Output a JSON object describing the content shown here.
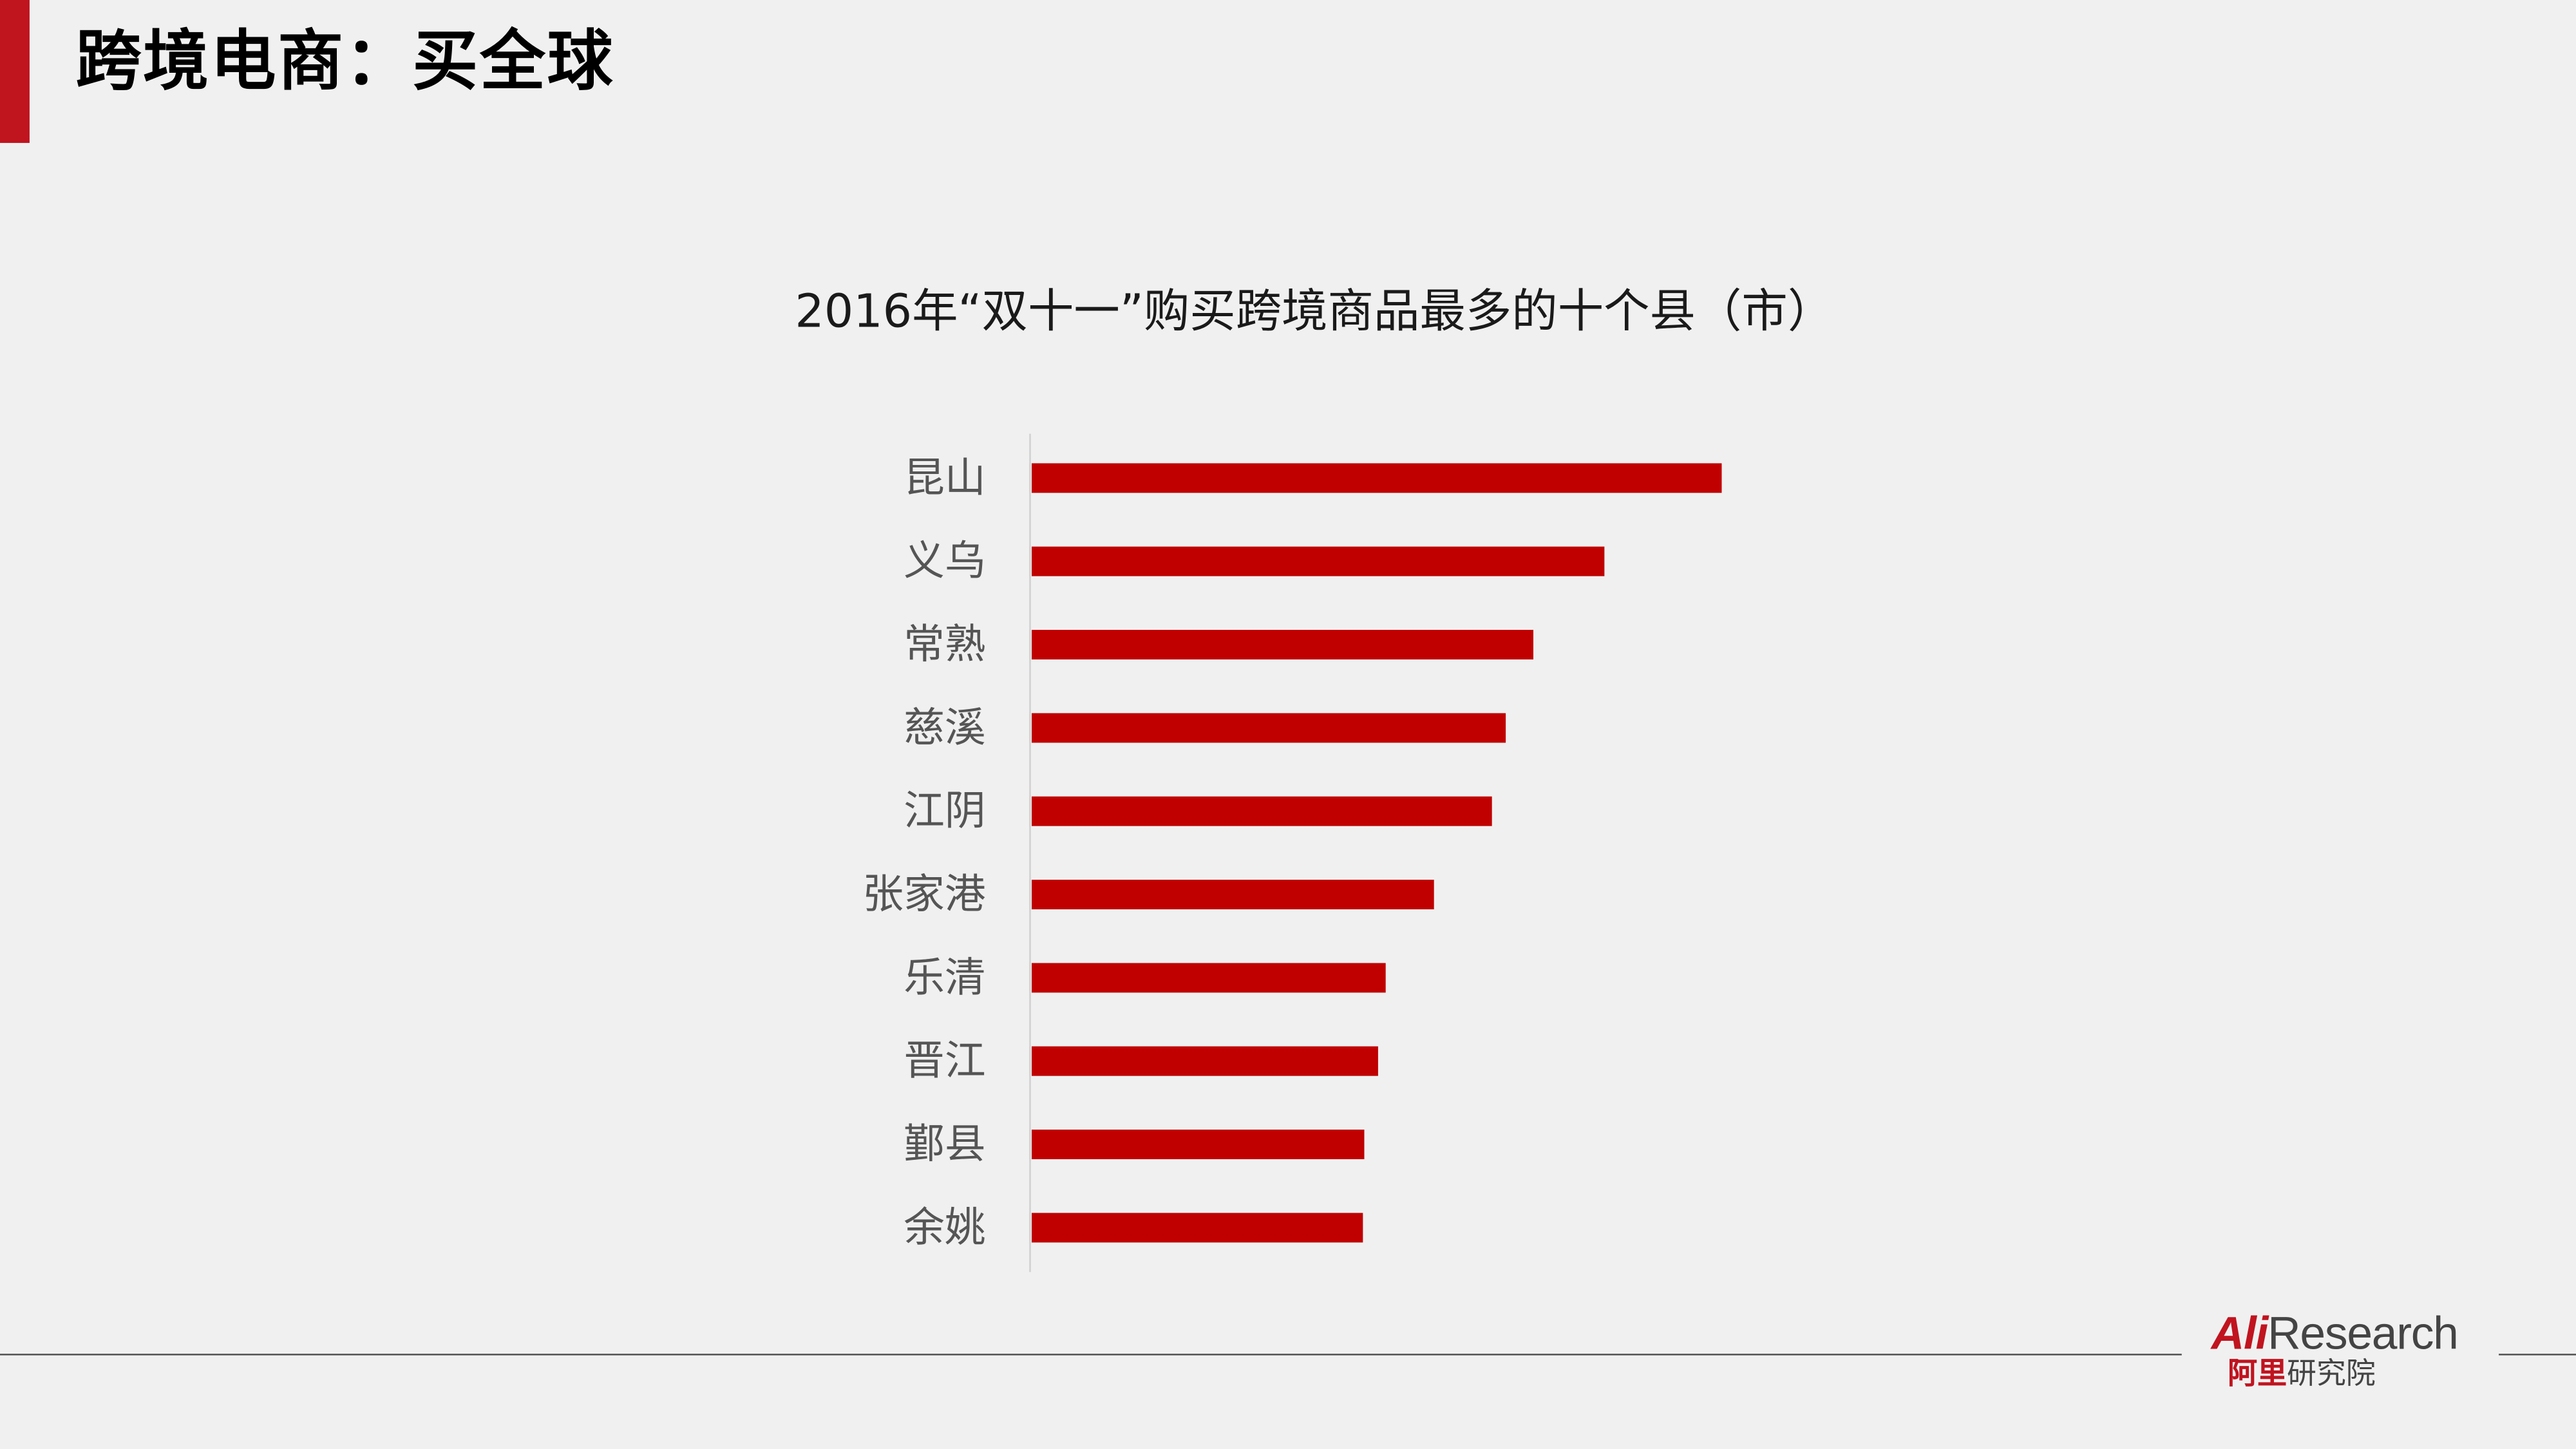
{
  "header": {
    "title": "跨境电商：买全球",
    "accent_color": "#c0141f"
  },
  "chart_data": {
    "type": "bar",
    "orientation": "horizontal",
    "title": "2016年“双十一”购买跨境商品最多的十个县（市）",
    "xlabel": "",
    "ylabel": "",
    "categories": [
      "昆山",
      "义乌",
      "常熟",
      "慈溪",
      "江阴",
      "张家港",
      "乐清",
      "晋江",
      "鄞县",
      "余姚"
    ],
    "values": [
      100,
      83,
      72.7,
      68.7,
      66.7,
      58.3,
      51.3,
      50.2,
      48.2,
      48
    ],
    "xlim": [
      0,
      100
    ],
    "value_unit": "relative index (no axis shown)",
    "bar_color": "#c00000",
    "grid": false,
    "legend": "none"
  },
  "logo": {
    "brand_red": "Ali",
    "brand_grey": "Research",
    "cn_red": "阿里",
    "cn_grey": "研究院"
  }
}
